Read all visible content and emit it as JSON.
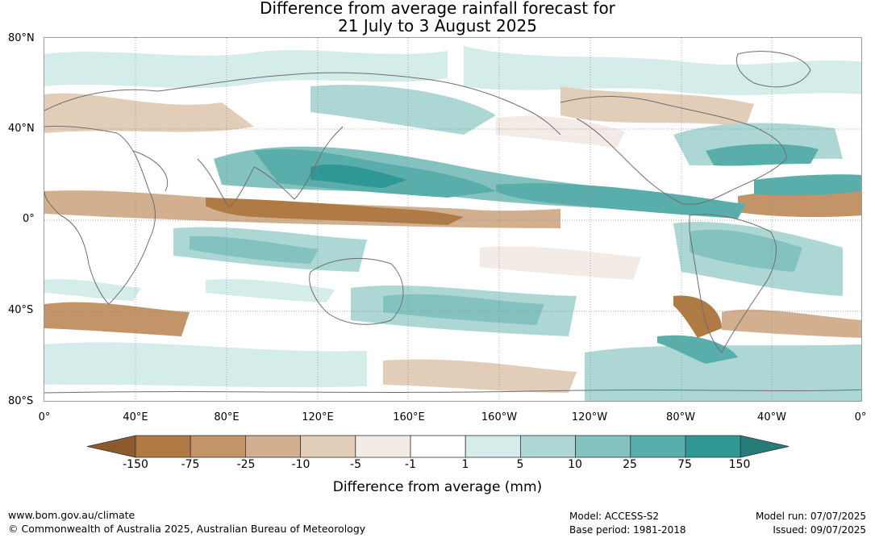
{
  "title_line1": "Difference from average rainfall forecast for",
  "title_line2": "21 July to 3 August 2025",
  "lat_labels": [
    "80°N",
    "40°N",
    "0°",
    "40°S",
    "80°S"
  ],
  "lon_labels": [
    "0°",
    "40°E",
    "80°E",
    "120°E",
    "160°E",
    "160°W",
    "120°W",
    "80°W",
    "40°W",
    "0°"
  ],
  "colorbar": {
    "title": "Difference from average (mm)",
    "tick_labels": [
      "-150",
      "-75",
      "-25",
      "-10",
      "-5",
      "-1",
      "1",
      "5",
      "10",
      "25",
      "75",
      "150"
    ],
    "colors": [
      "#8c5a2b",
      "#b07a45",
      "#c39468",
      "#d2af8e",
      "#e2cdb9",
      "#f3ebe5",
      "#ffffff",
      "#d4ecea",
      "#acd7d5",
      "#84c2c0",
      "#59adaa",
      "#2f9894",
      "#257c78"
    ]
  },
  "footer": {
    "website": "www.bom.gov.au/climate",
    "copyright": "© Commonwealth of Australia 2025, Australian Bureau of Meteorology",
    "model": "Model: ACCESS-S2",
    "base_period": "Base period: 1981-2018",
    "model_run": "Model run: 07/07/2025",
    "issued": "Issued: 09/07/2025"
  },
  "map": {
    "projection": "equirectangular",
    "lat_range": [
      -80,
      80
    ],
    "lon_range": [
      0,
      360
    ],
    "gridlines": true
  }
}
